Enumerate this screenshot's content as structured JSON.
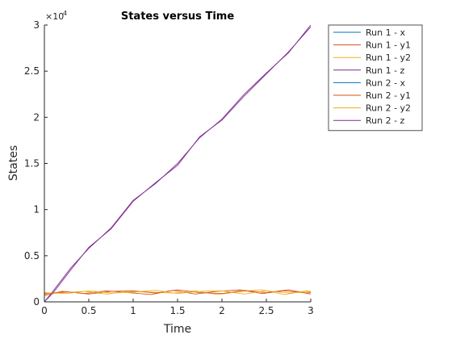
{
  "chart_data": {
    "type": "line",
    "title": "States versus Time",
    "xlabel": "Time",
    "ylabel": "States",
    "xlim": [
      0,
      3
    ],
    "ylim": [
      0,
      30000
    ],
    "x_ticks": [
      0,
      0.5,
      1,
      1.5,
      2,
      2.5,
      3
    ],
    "x_tick_labels": [
      "0",
      "0.5",
      "1",
      "1.5",
      "2",
      "2.5",
      "3"
    ],
    "y_ticks": [
      0,
      5000,
      10000,
      15000,
      20000,
      25000,
      30000
    ],
    "y_tick_labels": [
      "0",
      "0.5",
      "1",
      "1.5",
      "2",
      "2.5",
      "3"
    ],
    "y_exponent_base": "×10",
    "y_exponent_power": "4",
    "grid": false,
    "legend_location": "outside-top-right",
    "series": [
      {
        "name": "Run 1 - x",
        "color": "#0072BD",
        "x": [
          0,
          3
        ],
        "y": [
          0,
          0
        ]
      },
      {
        "name": "Run 1 - y1",
        "color": "#D95319",
        "x": [
          0,
          0.2,
          0.45,
          0.7,
          0.95,
          1.2,
          1.45,
          1.7,
          1.95,
          2.2,
          2.45,
          2.7,
          2.95,
          3.0
        ],
        "y": [
          700,
          1150,
          900,
          1200,
          1000,
          800,
          1250,
          850,
          1150,
          1300,
          900,
          1200,
          950,
          1000
        ]
      },
      {
        "name": "Run 1 - y2",
        "color": "#EDB120",
        "x": [
          0,
          0.2,
          0.45,
          0.7,
          0.95,
          1.2,
          1.45,
          1.7,
          1.95,
          2.2,
          2.45,
          2.7,
          2.95,
          3.0
        ],
        "y": [
          800,
          1000,
          1150,
          850,
          1150,
          1050,
          950,
          1200,
          800,
          1100,
          1300,
          800,
          1200,
          1150
        ]
      },
      {
        "name": "Run 1 - z",
        "color": "#7E2F8E",
        "x": [
          0,
          0.1,
          0.3,
          0.5,
          0.75,
          1.0,
          1.25,
          1.5,
          1.75,
          2.0,
          2.25,
          2.5,
          2.75,
          3.0
        ],
        "y": [
          0,
          1200,
          3700,
          5800,
          8000,
          11000,
          12800,
          15000,
          17800,
          19800,
          22500,
          24800,
          27000,
          30000
        ]
      },
      {
        "name": "Run 2 - x",
        "color": "#0072BD",
        "x": [
          0,
          3
        ],
        "y": [
          0,
          0
        ]
      },
      {
        "name": "Run 2 - y1",
        "color": "#D95319",
        "x": [
          0,
          0.25,
          0.5,
          0.75,
          1.0,
          1.25,
          1.5,
          1.75,
          2.0,
          2.25,
          2.5,
          2.75,
          3.0
        ],
        "y": [
          900,
          1100,
          850,
          1150,
          1200,
          950,
          1300,
          1000,
          900,
          1250,
          1000,
          1300,
          850
        ]
      },
      {
        "name": "Run 2 - y2",
        "color": "#EDB120",
        "x": [
          0,
          0.25,
          0.5,
          0.75,
          1.0,
          1.25,
          1.5,
          1.75,
          2.0,
          2.25,
          2.5,
          2.75,
          3.0
        ],
        "y": [
          1000,
          900,
          1200,
          950,
          1050,
          1250,
          900,
          1150,
          1200,
          850,
          1200,
          950,
          1100
        ]
      },
      {
        "name": "Run 2 - z",
        "color": "#7E2F8E",
        "x": [
          0,
          0.1,
          0.3,
          0.5,
          0.75,
          1.0,
          1.25,
          1.5,
          1.75,
          2.0,
          2.25,
          2.5,
          2.75,
          3.0
        ],
        "y": [
          0,
          1000,
          3500,
          5900,
          7900,
          10900,
          12900,
          14800,
          17900,
          19700,
          22300,
          24700,
          27100,
          29800
        ]
      }
    ]
  }
}
